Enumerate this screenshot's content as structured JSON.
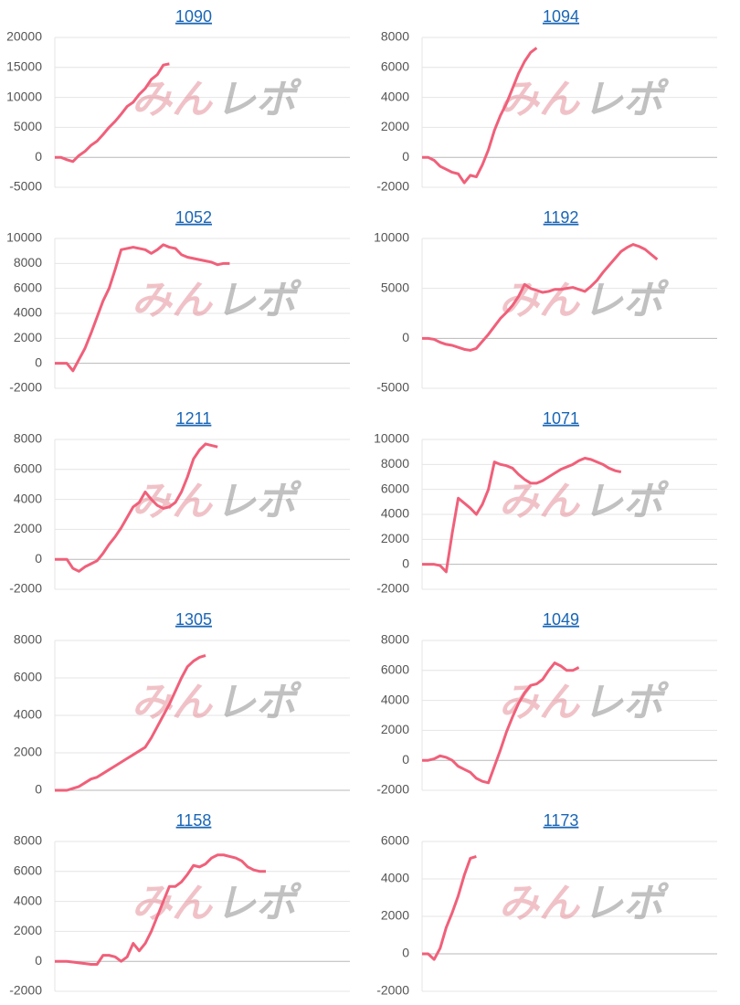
{
  "watermark": {
    "left": "みん",
    "right": "レポ"
  },
  "chart_data": [
    {
      "type": "line",
      "title": "1090",
      "ylim": [
        -5000,
        20000
      ],
      "yticks": [
        -5000,
        0,
        5000,
        10000,
        15000,
        20000
      ],
      "grid": true,
      "series": [
        {
          "color": "#f0607a",
          "values": [
            0,
            0,
            -400,
            -700,
            300,
            1000,
            2000,
            2700,
            3800,
            5000,
            6000,
            7200,
            8500,
            9200,
            10500,
            11500,
            13000,
            13800,
            15400,
            15600
          ]
        }
      ]
    },
    {
      "type": "line",
      "title": "1094",
      "ylim": [
        -2000,
        8000
      ],
      "yticks": [
        -2000,
        0,
        2000,
        4000,
        6000,
        8000
      ],
      "grid": true,
      "series": [
        {
          "color": "#f0607a",
          "values": [
            0,
            0,
            -200,
            -600,
            -800,
            -1000,
            -1100,
            -1700,
            -1200,
            -1300,
            -500,
            500,
            1800,
            2800,
            3600,
            4600,
            5600,
            6400,
            7000,
            7300
          ]
        }
      ]
    },
    {
      "type": "line",
      "title": "1052",
      "ylim": [
        -2000,
        10000
      ],
      "yticks": [
        -2000,
        0,
        2000,
        4000,
        6000,
        8000,
        10000
      ],
      "grid": true,
      "series": [
        {
          "color": "#f0607a",
          "values": [
            0,
            0,
            0,
            -600,
            300,
            1200,
            2400,
            3700,
            5000,
            6000,
            7500,
            9100,
            9200,
            9300,
            9200,
            9100,
            8800,
            9100,
            9500,
            9300,
            9200,
            8700,
            8500,
            8400,
            8300,
            8200,
            8100,
            7900,
            8000,
            8000
          ]
        }
      ]
    },
    {
      "type": "line",
      "title": "1192",
      "ylim": [
        -5000,
        10000
      ],
      "yticks": [
        -5000,
        0,
        5000,
        10000
      ],
      "grid": true,
      "series": [
        {
          "color": "#f0607a",
          "values": [
            0,
            0,
            -100,
            -400,
            -600,
            -700,
            -900,
            -1100,
            -1200,
            -1000,
            -300,
            400,
            1200,
            2000,
            2600,
            3300,
            4200,
            5400,
            5000,
            4800,
            4600,
            4700,
            4900,
            4900,
            5000,
            5100,
            4900,
            4700,
            5200,
            5800,
            6600,
            7300,
            8000,
            8700,
            9100,
            9400,
            9200,
            8900,
            8400,
            7900
          ]
        }
      ]
    },
    {
      "type": "line",
      "title": "1211",
      "ylim": [
        -2000,
        8000
      ],
      "yticks": [
        -2000,
        0,
        2000,
        4000,
        6000,
        8000
      ],
      "grid": true,
      "series": [
        {
          "color": "#f0607a",
          "values": [
            0,
            0,
            0,
            -600,
            -800,
            -500,
            -300,
            -100,
            400,
            1000,
            1500,
            2100,
            2800,
            3500,
            3800,
            4500,
            4000,
            3600,
            3400,
            3500,
            3800,
            4500,
            5500,
            6700,
            7300,
            7700,
            7600,
            7500
          ]
        }
      ]
    },
    {
      "type": "line",
      "title": "1071",
      "ylim": [
        -2000,
        10000
      ],
      "yticks": [
        -2000,
        0,
        2000,
        4000,
        6000,
        8000,
        10000
      ],
      "grid": true,
      "series": [
        {
          "color": "#f0607a",
          "values": [
            0,
            0,
            0,
            -100,
            -600,
            2500,
            5300,
            4900,
            4500,
            4000,
            4800,
            6000,
            8200,
            8000,
            7900,
            7700,
            7200,
            6800,
            6500,
            6500,
            6700,
            7000,
            7300,
            7600,
            7800,
            8000,
            8300,
            8500,
            8400,
            8200,
            8000,
            7700,
            7500,
            7400
          ]
        }
      ]
    },
    {
      "type": "line",
      "title": "1305",
      "ylim": [
        0,
        8000
      ],
      "yticks": [
        0,
        2000,
        4000,
        6000,
        8000
      ],
      "grid": true,
      "series": [
        {
          "color": "#f0607a",
          "values": [
            0,
            0,
            0,
            100,
            200,
            400,
            600,
            700,
            900,
            1100,
            1300,
            1500,
            1700,
            1900,
            2100,
            2300,
            2800,
            3400,
            4000,
            4600,
            5300,
            6000,
            6600,
            6900,
            7100,
            7200
          ]
        }
      ]
    },
    {
      "type": "line",
      "title": "1049",
      "ylim": [
        -2000,
        8000
      ],
      "yticks": [
        -2000,
        0,
        2000,
        4000,
        6000,
        8000
      ],
      "grid": true,
      "series": [
        {
          "color": "#f0607a",
          "values": [
            0,
            0,
            100,
            300,
            200,
            0,
            -400,
            -600,
            -800,
            -1200,
            -1400,
            -1500,
            -400,
            700,
            1900,
            2900,
            3800,
            4500,
            5000,
            5100,
            5400,
            6000,
            6500,
            6300,
            6000,
            6000,
            6200
          ]
        }
      ]
    },
    {
      "type": "line",
      "title": "1158",
      "ylim": [
        -2000,
        8000
      ],
      "yticks": [
        -2000,
        0,
        2000,
        4000,
        6000,
        8000
      ],
      "grid": true,
      "series": [
        {
          "color": "#f0607a",
          "values": [
            0,
            0,
            0,
            -50,
            -100,
            -150,
            -200,
            -200,
            400,
            400,
            300,
            0,
            300,
            1200,
            700,
            1200,
            2000,
            3000,
            4000,
            5000,
            5000,
            5300,
            5800,
            6400,
            6300,
            6500,
            6900,
            7100,
            7100,
            7000,
            6900,
            6700,
            6300,
            6100,
            6000,
            6000
          ]
        }
      ]
    },
    {
      "type": "line",
      "title": "1173",
      "ylim": [
        -2000,
        6000
      ],
      "yticks": [
        -2000,
        0,
        2000,
        4000,
        6000
      ],
      "grid": true,
      "series": [
        {
          "color": "#f0607a",
          "values": [
            0,
            0,
            -300,
            300,
            1400,
            2200,
            3100,
            4200,
            5100,
            5200
          ]
        }
      ]
    }
  ]
}
